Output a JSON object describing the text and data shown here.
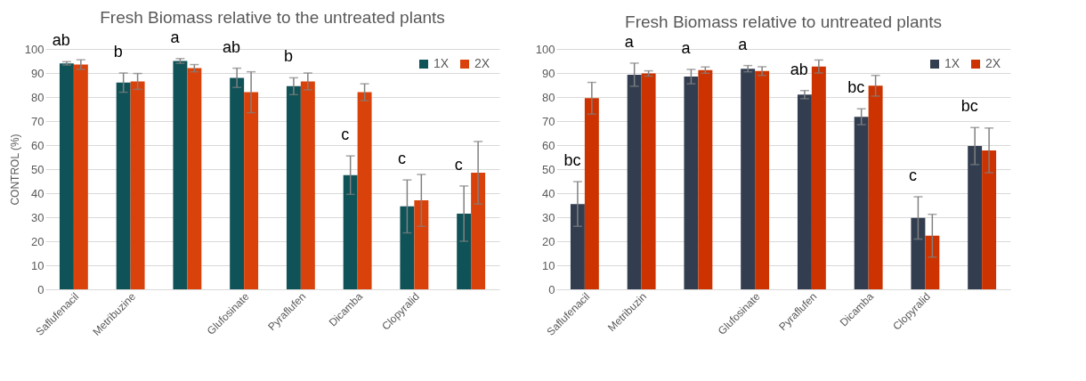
{
  "chart_data": [
    {
      "type": "bar",
      "title": "Fresh Biomass relative to the untreated plants",
      "ylabel": "CONTROL (%)",
      "categories": [
        "Saflufenacil",
        "Metribuzine",
        null,
        "Glufosinate",
        "Pyraflufen",
        "Dicamba",
        "Clopyralid",
        null
      ],
      "series": [
        {
          "name": "1X",
          "color": "#0f5257",
          "values": [
            94,
            86,
            95,
            88,
            84.5,
            47.5,
            34.5,
            31.5
          ],
          "errors": [
            0.7,
            4,
            1,
            4,
            3.5,
            8,
            11,
            11.5
          ]
        },
        {
          "name": "2X",
          "color": "#d9420b",
          "values": [
            93.5,
            86.5,
            92,
            82,
            86.5,
            82,
            37,
            48.5
          ],
          "errors": [
            2,
            3.3,
            1.5,
            8.5,
            3.5,
            3.5,
            10.8,
            13
          ]
        }
      ],
      "annotations": [
        "ab",
        "b",
        "a",
        "ab",
        "b",
        "c",
        "c",
        "c"
      ],
      "ylim": [
        0,
        100
      ],
      "yticks": [
        0,
        10,
        20,
        30,
        40,
        50,
        60,
        70,
        80,
        90,
        100
      ],
      "grid": "y",
      "legend": "top right"
    },
    {
      "type": "bar",
      "title": "Fresh Biomass relative to untreated plants",
      "categories": [
        "Saflufenacil",
        "Metribuzin",
        null,
        "Glufosinate",
        "Pyraflufen",
        "Dicamba",
        "Clopyralid",
        null
      ],
      "series": [
        {
          "name": "1X",
          "color": "#323e50",
          "values": [
            35.5,
            89.3,
            88.5,
            91.8,
            81,
            71.8,
            29.7,
            59.6
          ],
          "errors": [
            9.3,
            4.8,
            3,
            1.3,
            1.7,
            3.3,
            8.8,
            7.7
          ]
        },
        {
          "name": "2X",
          "color": "#cc3300",
          "values": [
            79.5,
            89.8,
            91.2,
            90.8,
            92.7,
            84.7,
            22.3,
            57.8
          ],
          "errors": [
            6.6,
            1.1,
            1.3,
            1.8,
            2.7,
            4.3,
            8.9,
            9.3
          ]
        }
      ],
      "annotations": [
        "bc",
        "a",
        "a",
        "a",
        "ab",
        "bc",
        "c",
        "bc"
      ],
      "ylim": [
        0,
        100
      ],
      "yticks": [
        0,
        10,
        20,
        30,
        40,
        50,
        60,
        70,
        80,
        90,
        100
      ],
      "grid": "y",
      "legend": "top right"
    }
  ]
}
